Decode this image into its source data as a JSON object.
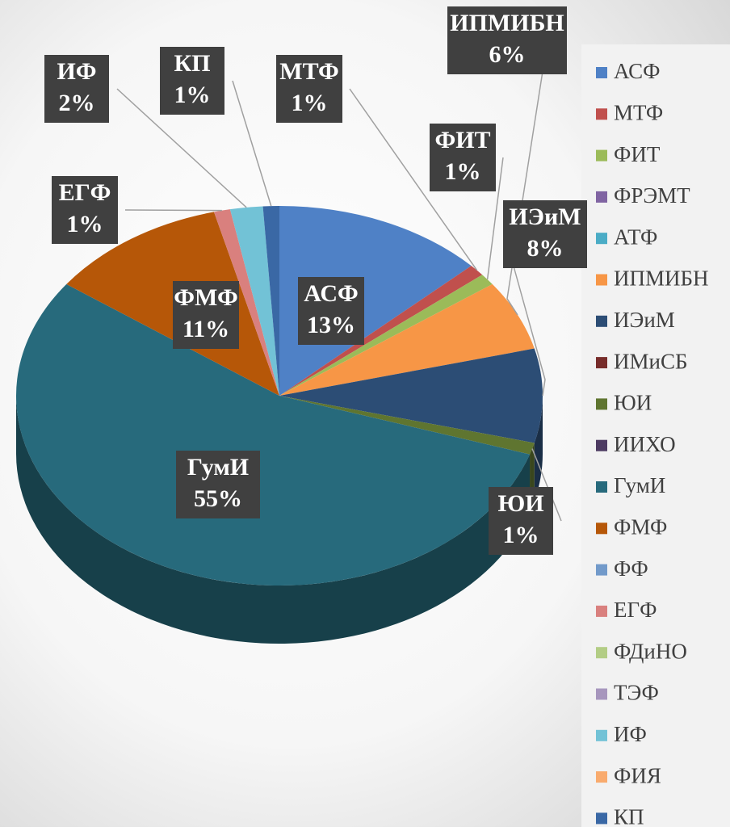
{
  "chart_data": {
    "type": "pie",
    "categories": [
      "АСФ",
      "МТФ",
      "ФИТ",
      "ФРЭМТ",
      "АТФ",
      "ИПМИБН",
      "ИЭиМ",
      "ИМиСБ",
      "ЮИ",
      "ИИХО",
      "ГумИ",
      "ФМФ",
      "ФФ",
      "ЕГФ",
      "ФДиНО",
      "ТЭФ",
      "ИФ",
      "ФИЯ",
      "КП"
    ],
    "values": [
      13,
      1,
      1,
      0,
      0,
      6,
      8,
      0,
      1,
      0,
      55,
      11,
      0,
      1,
      0,
      0,
      2,
      0,
      1
    ],
    "value_labels": [
      "13%",
      "1%",
      "1%",
      null,
      null,
      "6%",
      "8%",
      null,
      "1%",
      null,
      "55%",
      "11%",
      null,
      "1%",
      null,
      null,
      "2%",
      null,
      "1%"
    ],
    "colors": [
      "#4f81c6",
      "#c0504d",
      "#9bbb59",
      "#8064a2",
      "#4bacc6",
      "#f79646",
      "#2c4d75",
      "#772c2a",
      "#5f7530",
      "#4d3b62",
      "#276a7c",
      "#b65708",
      "#729aca",
      "#d9807e",
      "#b3cd85",
      "#a796bd",
      "#72c2d6",
      "#f9ab6e",
      "#3a68a5"
    ],
    "legend": "right"
  }
}
